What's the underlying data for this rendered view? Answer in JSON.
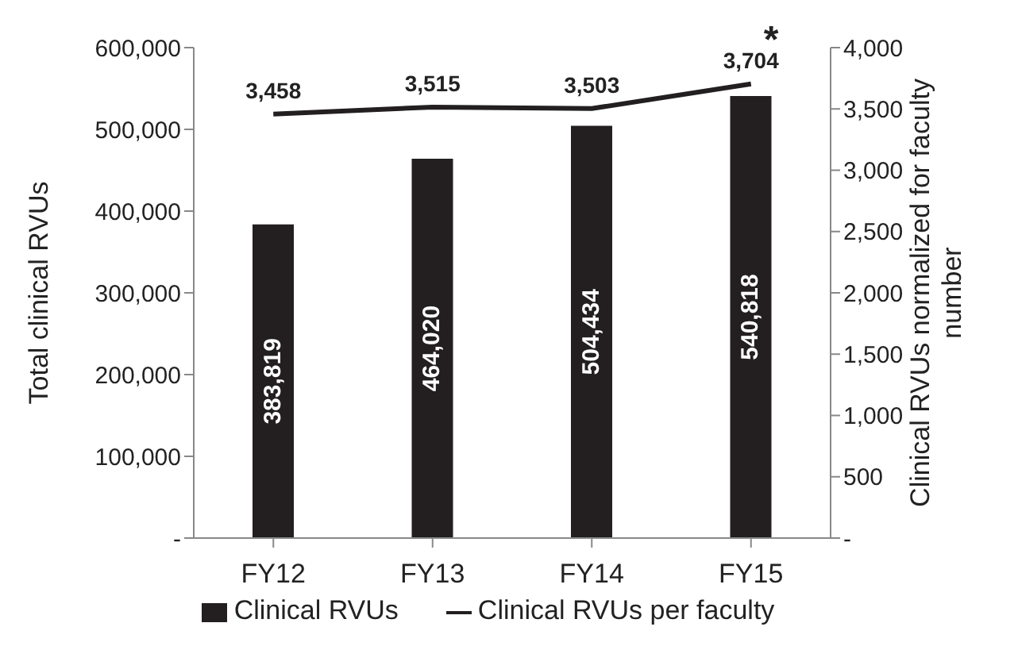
{
  "chart_data": {
    "type": "bar",
    "categories": [
      "FY12",
      "FY13",
      "FY14",
      "FY15"
    ],
    "series": [
      {
        "name": "Clinical RVUs",
        "color": "#231f20",
        "values": [
          383819,
          464020,
          504434,
          540818
        ],
        "value_labels": [
          "383,819",
          "464,020",
          "504,434",
          "540,818"
        ]
      },
      {
        "name": "Clinical RVUs per faculty",
        "type": "line",
        "axis": "y2",
        "color": "#231f20",
        "values": [
          3458,
          3515,
          3503,
          3704
        ],
        "value_labels": [
          "3,458",
          "3,515",
          "3,503",
          "3,704"
        ]
      }
    ],
    "ylabel": "Total clinical RVUs",
    "y2label": "Clinical RVUs normalized for faculty number",
    "ylim": [
      0,
      600000
    ],
    "yticks": [
      {
        "value": 0,
        "label": "-"
      },
      {
        "value": 100000,
        "label": "100,000"
      },
      {
        "value": 200000,
        "label": "200,000"
      },
      {
        "value": 300000,
        "label": "300,000"
      },
      {
        "value": 400000,
        "label": "400,000"
      },
      {
        "value": 500000,
        "label": "500,000"
      },
      {
        "value": 600000,
        "label": "600,000"
      }
    ],
    "y2lim": [
      0,
      4000
    ],
    "y2ticks": [
      {
        "value": 0,
        "label": "-"
      },
      500,
      {
        "value": 1000,
        "label": "1,000"
      },
      {
        "value": 1500,
        "label": "1,500"
      },
      {
        "value": 2000,
        "label": "2,000"
      },
      {
        "value": 2500,
        "label": "2,500"
      },
      {
        "value": 3000,
        "label": "3,000"
      },
      {
        "value": 3500,
        "label": "3,500"
      },
      {
        "value": 4000,
        "label": "4,000"
      }
    ],
    "legend": "bottom",
    "grid": false,
    "marker": "none",
    "annotations": [
      "*"
    ]
  }
}
